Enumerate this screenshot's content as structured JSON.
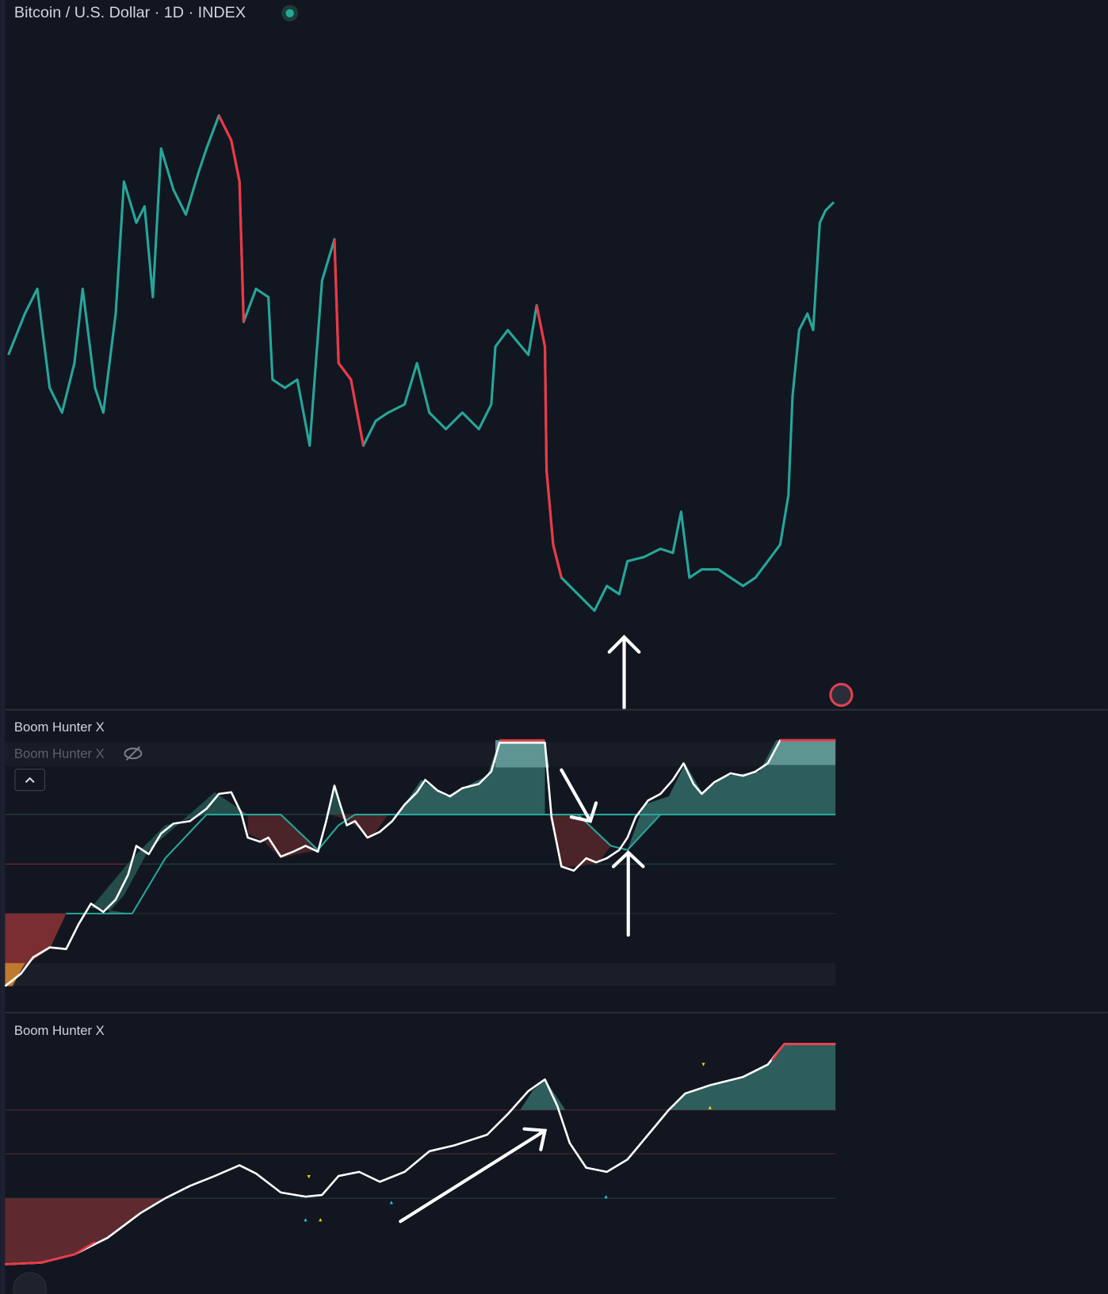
{
  "header": {
    "title": "Bitcoin / U.S. Dollar · 1D · INDEX"
  },
  "panes": [
    {
      "title": "Boom Hunter X",
      "legend": "Boom Hunter X"
    },
    {
      "title": "Boom Hunter X"
    }
  ]
}
